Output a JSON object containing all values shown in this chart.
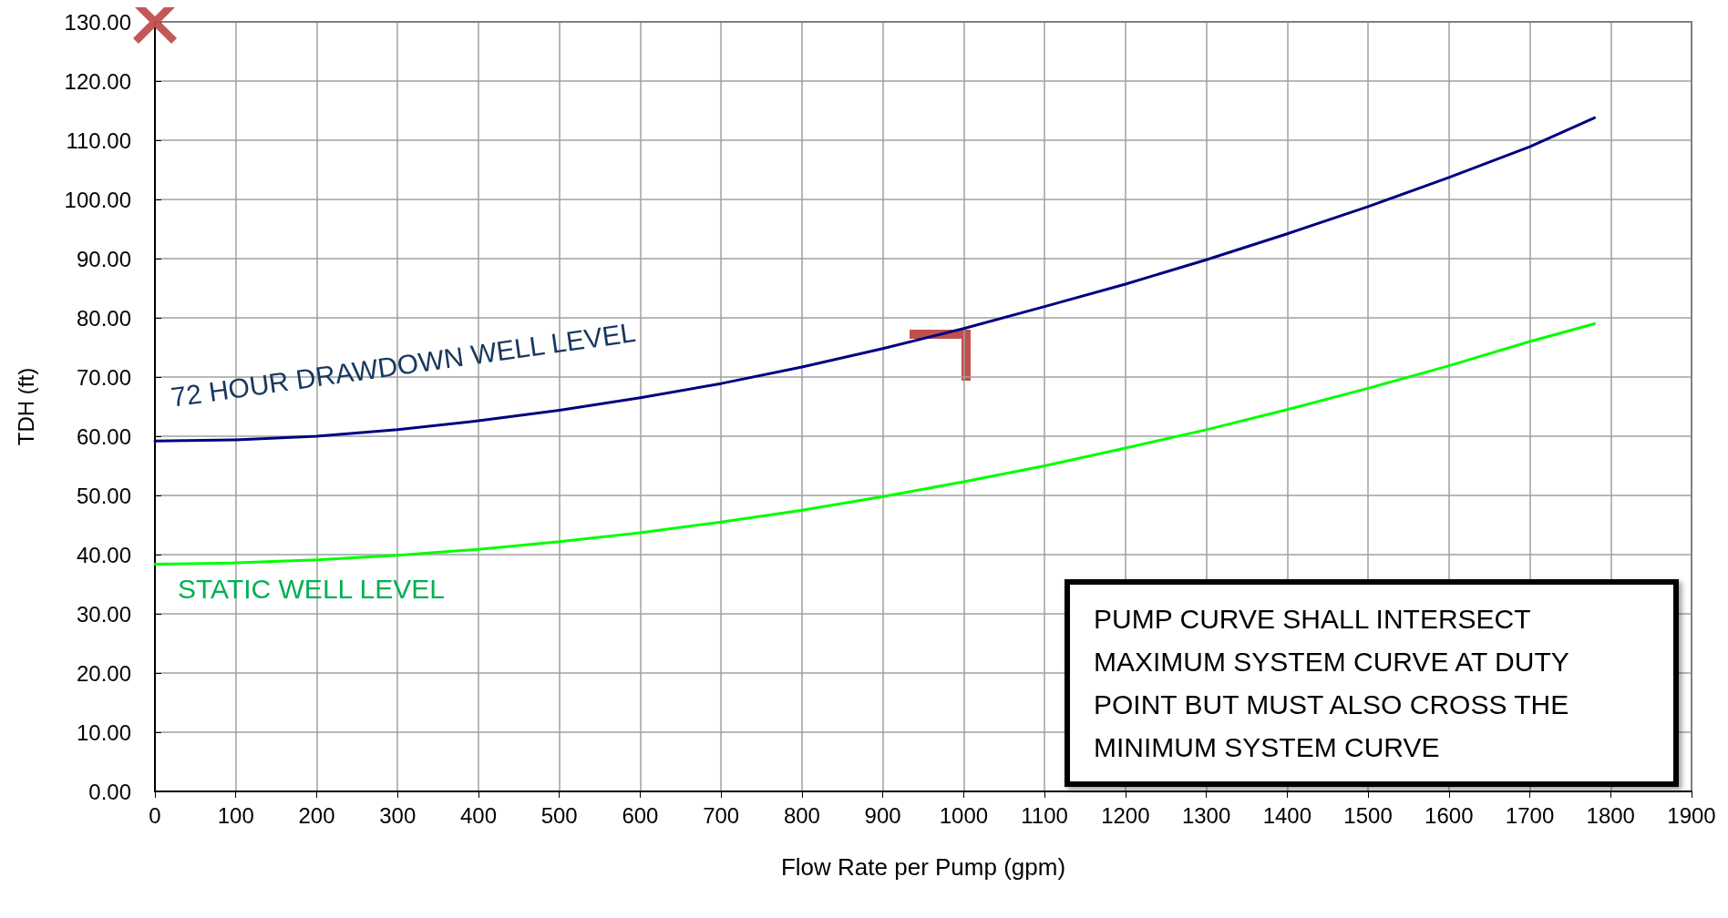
{
  "chart_data": {
    "type": "line",
    "xlabel": "Flow Rate per Pump (gpm)",
    "ylabel": "TDH (ft)",
    "series": [
      {
        "name": "72 HOUR DRAWDOWN WELL LEVEL",
        "color": "#000080",
        "x": [
          0,
          100,
          200,
          300,
          400,
          500,
          600,
          700,
          800,
          900,
          1000,
          1100,
          1200,
          1300,
          1400,
          1500,
          1600,
          1700,
          1780
        ],
        "values": [
          59.2,
          59.4,
          60,
          61.1,
          62.6,
          64.4,
          66.5,
          68.9,
          71.7,
          74.8,
          78.2,
          81.9,
          85.7,
          89.8,
          94.2,
          98.8,
          103.7,
          108.9,
          113.8
        ]
      },
      {
        "name": "STATIC WELL LEVEL",
        "color": "#00ff00",
        "x": [
          0,
          100,
          200,
          300,
          400,
          500,
          600,
          700,
          800,
          900,
          1000,
          1100,
          1200,
          1300,
          1400,
          1500,
          1600,
          1700,
          1780
        ],
        "values": [
          38.4,
          38.6,
          39.1,
          39.9,
          40.9,
          42.2,
          43.7,
          45.5,
          47.5,
          49.8,
          52.3,
          55,
          58,
          61.1,
          64.5,
          68.1,
          71.9,
          76,
          79
        ]
      },
      {
        "type": "scatter",
        "marker": "cross",
        "color": "#c0504d",
        "x": [
          0
        ],
        "values": [
          130
        ]
      }
    ],
    "annotations": [
      "PUMP CURVE SHALL INTERSECT MAXIMUM SYSTEM CURVE AT DUTY POINT BUT MUST ALSO CROSS THE MINIMUM SYSTEM CURVE"
    ],
    "xlim": [
      0,
      1900
    ],
    "xticks": [
      0,
      100,
      200,
      300,
      400,
      500,
      600,
      700,
      800,
      900,
      1000,
      1100,
      1200,
      1300,
      1400,
      1500,
      1600,
      1700,
      1800,
      1900
    ],
    "ylim": [
      0,
      130
    ],
    "yticks": [
      {
        "value": 0,
        "label": "0.00"
      },
      {
        "value": 10,
        "label": "10.00"
      },
      {
        "value": 20,
        "label": "20.00"
      },
      {
        "value": 30,
        "label": "30.00"
      },
      {
        "value": 40,
        "label": "40.00"
      },
      {
        "value": 50,
        "label": "50.00"
      },
      {
        "value": 60,
        "label": "60.00"
      },
      {
        "value": 70,
        "label": "70.00"
      },
      {
        "value": 80,
        "label": "80.00"
      },
      {
        "value": 90,
        "label": "90.00"
      },
      {
        "value": 100,
        "label": "100.00"
      },
      {
        "value": 110,
        "label": "110.00"
      },
      {
        "value": 120,
        "label": "120.00"
      },
      {
        "value": 130,
        "label": "130.00"
      }
    ],
    "grid": true,
    "legend": false
  }
}
